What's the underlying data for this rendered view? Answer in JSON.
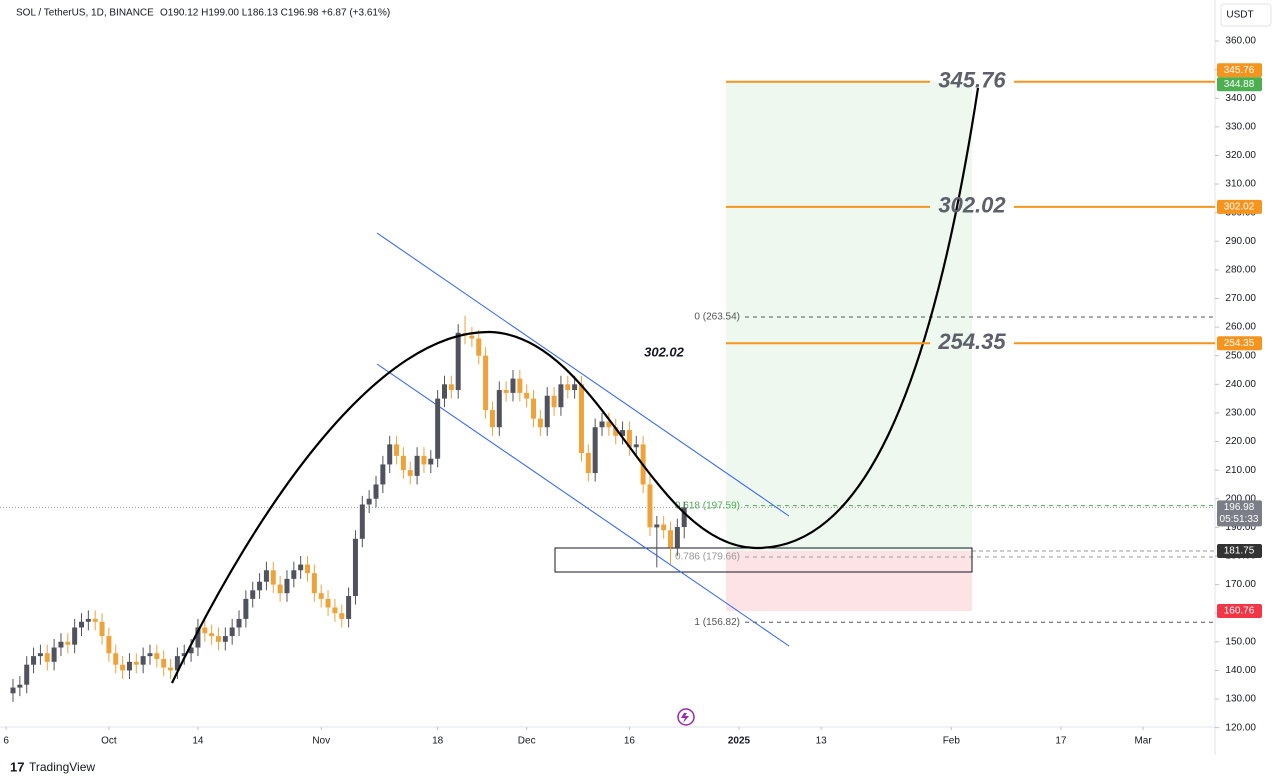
{
  "chart_data": {
    "type": "candlestick",
    "title": "SOL / TetherUS, 1D, BINANCE",
    "legend_values": "O190.12 H199.00 L186.13 C196.98 +6.87 (+3.61%)",
    "currency": "USDT",
    "brand": "TradingView",
    "annotation": "302.02",
    "countdown": "05:51:33",
    "up_color": "#50535e",
    "down_color": "#f0a23a",
    "open": [
      132,
      134,
      135,
      142,
      145,
      146,
      143,
      148,
      150,
      149,
      155,
      157,
      158,
      157,
      152,
      146,
      142,
      140,
      143,
      142,
      145,
      146,
      144,
      141,
      140,
      145,
      146,
      148,
      155,
      153,
      152,
      150,
      152,
      155,
      158,
      165,
      168,
      171,
      175,
      170,
      167,
      172,
      175,
      177,
      174,
      167,
      165,
      162,
      160,
      158,
      166,
      186,
      198,
      200,
      205,
      212,
      219,
      215,
      210,
      208,
      215,
      212,
      214,
      235,
      240,
      238,
      258,
      257,
      256,
      250,
      231,
      225,
      238,
      237,
      242,
      237,
      235,
      228,
      225,
      236,
      232,
      240,
      238,
      240,
      216,
      209,
      225,
      227,
      225,
      222,
      224,
      218,
      219,
      205,
      190,
      191,
      189,
      183,
      190.12
    ],
    "high": [
      137,
      138,
      145,
      148,
      149,
      149,
      151,
      153,
      153,
      158,
      160,
      161,
      161,
      160,
      155,
      149,
      145,
      146,
      146,
      148,
      149,
      149,
      147,
      144,
      148,
      149,
      151,
      158,
      158,
      156,
      155,
      155,
      158,
      161,
      168,
      171,
      174,
      178,
      178,
      173,
      175,
      178,
      180,
      180,
      177,
      170,
      168,
      165,
      163,
      169,
      189,
      201,
      203,
      208,
      215,
      222,
      222,
      218,
      213,
      218,
      218,
      217,
      238,
      243,
      243,
      261,
      264,
      260,
      259,
      253,
      234,
      241,
      241,
      245,
      245,
      240,
      238,
      231,
      239,
      239,
      243,
      243,
      243,
      243,
      219,
      228,
      230,
      230,
      228,
      227,
      227,
      222,
      222,
      208,
      194,
      194,
      192,
      193,
      199
    ],
    "low": [
      129,
      131,
      132,
      139,
      142,
      140,
      140,
      145,
      146,
      146,
      152,
      154,
      154,
      149,
      143,
      139,
      137,
      137,
      139,
      139,
      142,
      141,
      138,
      137,
      137,
      142,
      143,
      145,
      150,
      149,
      147,
      147,
      149,
      152,
      155,
      162,
      165,
      168,
      167,
      164,
      164,
      169,
      172,
      171,
      164,
      162,
      159,
      157,
      155,
      155,
      163,
      183,
      195,
      197,
      202,
      209,
      212,
      207,
      205,
      205,
      209,
      209,
      211,
      232,
      235,
      235,
      254,
      253,
      247,
      228,
      222,
      222,
      234,
      234,
      234,
      232,
      225,
      222,
      222,
      229,
      229,
      235,
      235,
      213,
      206,
      206,
      222,
      222,
      219,
      219,
      215,
      215,
      202,
      187,
      176,
      186,
      177,
      180,
      186.13
    ],
    "close": [
      134,
      135,
      142,
      145,
      146,
      143,
      148,
      150,
      149,
      155,
      157,
      158,
      157,
      152,
      146,
      142,
      140,
      143,
      142,
      145,
      146,
      144,
      141,
      140,
      145,
      146,
      148,
      155,
      153,
      152,
      150,
      152,
      155,
      158,
      165,
      168,
      171,
      175,
      170,
      167,
      172,
      175,
      177,
      174,
      167,
      165,
      162,
      160,
      158,
      166,
      186,
      198,
      200,
      205,
      212,
      219,
      215,
      210,
      208,
      215,
      212,
      214,
      235,
      240,
      238,
      258,
      257,
      256,
      250,
      231,
      225,
      238,
      237,
      242,
      237,
      235,
      228,
      225,
      236,
      232,
      240,
      238,
      240,
      216,
      209,
      225,
      227,
      225,
      222,
      224,
      218,
      219,
      205,
      190,
      191,
      189,
      183,
      190.12,
      196.98
    ],
    "xlim": [
      -1.9,
      175.5
    ],
    "xticks": [
      {
        "value": -1,
        "label": "6"
      },
      {
        "value": 14,
        "label": "Oct"
      },
      {
        "value": 27,
        "label": "14"
      },
      {
        "value": 45,
        "label": "Nov"
      },
      {
        "value": 62,
        "label": "18"
      },
      {
        "value": 75,
        "label": "Dec"
      },
      {
        "value": 90,
        "label": "16"
      },
      {
        "value": 106,
        "label": "2025"
      },
      {
        "value": 118,
        "label": "13"
      },
      {
        "value": 137,
        "label": "Feb"
      },
      {
        "value": 153,
        "label": "17"
      },
      {
        "value": 165,
        "label": "Mar"
      }
    ],
    "ylim": [
      120.22,
      374.33
    ],
    "yticks": [
      {
        "value": 120,
        "label": "120.00"
      },
      {
        "value": 130,
        "label": "130.00"
      },
      {
        "value": 140,
        "label": "140.00"
      },
      {
        "value": 150,
        "label": "150.00"
      },
      {
        "value": 160,
        "label": "160.00"
      },
      {
        "value": 170,
        "label": "170.00"
      },
      {
        "value": 180,
        "label": "180.00"
      },
      {
        "value": 190,
        "label": "190.00"
      },
      {
        "value": 200,
        "label": "200.00"
      },
      {
        "value": 210,
        "label": "210.00"
      },
      {
        "value": 220,
        "label": "220.00"
      },
      {
        "value": 230,
        "label": "230.00"
      },
      {
        "value": 240,
        "label": "240.00"
      },
      {
        "value": 250,
        "label": "250.00"
      },
      {
        "value": 260,
        "label": "260.00"
      },
      {
        "value": 270,
        "label": "270.00"
      },
      {
        "value": 280,
        "label": "280.00"
      },
      {
        "value": 290,
        "label": "290.00"
      },
      {
        "value": 300,
        "label": "300.00"
      },
      {
        "value": 310,
        "label": "310.00"
      },
      {
        "value": 320,
        "label": "320.00"
      },
      {
        "value": 330,
        "label": "330.00"
      },
      {
        "value": 340,
        "label": "340.00"
      },
      {
        "value": 350,
        "label": "350.00"
      },
      {
        "value": 360,
        "label": "360.00"
      }
    ],
    "levels": [
      345.76,
      302.02,
      254.35
    ],
    "level_color": "#f7941d",
    "fib": [
      {
        "value": 263.54,
        "label": "0 (263.54)",
        "color": "#555555"
      },
      {
        "value": 197.59,
        "label": "0.618 (197.59)",
        "color": "#4caf50"
      },
      {
        "value": 179.66,
        "label": "0.786 (179.66)",
        "color": "#999999"
      },
      {
        "value": 156.82,
        "label": "1 (156.82)",
        "color": "#555555"
      }
    ],
    "target": 345.76,
    "entry": 181.75,
    "stop": 160.76,
    "price_tags": [
      {
        "value": 345.76,
        "color": "#f7941d"
      },
      {
        "value": 344.88,
        "color": "#4caf50"
      },
      {
        "value": 302.02,
        "color": "#f7941d"
      },
      {
        "value": 254.35,
        "color": "#f7941d"
      },
      {
        "value": 196.98,
        "color": "#7b7e87"
      },
      {
        "value": 181.75,
        "color": "#333333"
      },
      {
        "value": 160.76,
        "color": "#f23645"
      }
    ]
  }
}
